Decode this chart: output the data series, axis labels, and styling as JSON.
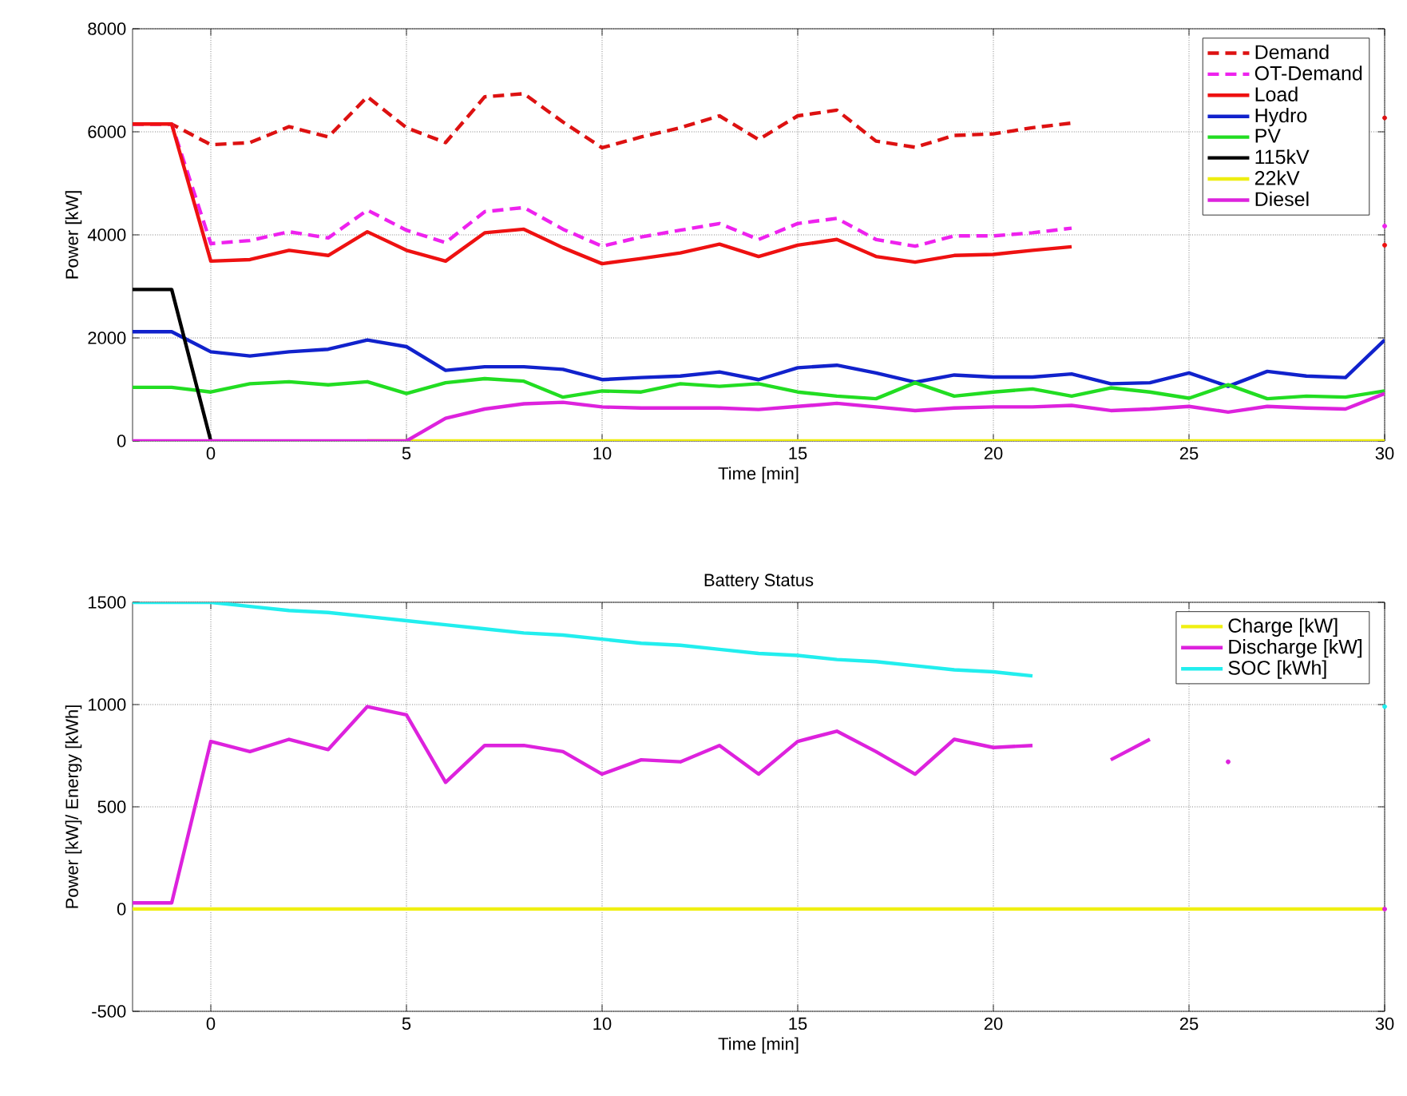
{
  "chart_data": [
    {
      "type": "line",
      "xlabel": "Time [min]",
      "ylabel": "Power [kW]",
      "xlim": [
        -2,
        30
      ],
      "ylim": [
        0,
        8000
      ],
      "xticks": [
        0,
        5,
        10,
        15,
        20,
        25,
        30
      ],
      "yticks": [
        0,
        2000,
        4000,
        6000,
        8000
      ],
      "grid": true,
      "legend": "top right",
      "x": [
        -2,
        -1,
        0,
        1,
        2,
        3,
        4,
        5,
        6,
        7,
        8,
        9,
        10,
        11,
        12,
        13,
        14,
        15,
        16,
        17,
        18,
        19,
        20,
        21,
        22,
        23,
        24,
        25,
        26,
        27,
        28,
        29,
        30
      ],
      "series": [
        {
          "name": "Demand",
          "color": "#dd1111",
          "line_style": "dashed",
          "values": [
            6150,
            6150,
            5750,
            5790,
            6100,
            5900,
            6680,
            6080,
            5790,
            6680,
            6740,
            6190,
            5690,
            5900,
            6080,
            6310,
            5850,
            6310,
            6420,
            5820,
            5700,
            5930,
            5960,
            6080,
            6170,
            null,
            null,
            null,
            null,
            null,
            null,
            null,
            6270
          ]
        },
        {
          "name": "OT-Demand",
          "color": "#ee22ee",
          "line_style": "dashed",
          "values": [
            6150,
            6150,
            3830,
            3890,
            4060,
            3940,
            4480,
            4090,
            3850,
            4450,
            4530,
            4110,
            3780,
            3960,
            4090,
            4220,
            3910,
            4220,
            4320,
            3910,
            3780,
            3980,
            3980,
            4040,
            4130,
            null,
            null,
            null,
            null,
            null,
            null,
            null,
            4170
          ]
        },
        {
          "name": "Load",
          "color": "#ee1111",
          "line_style": "solid",
          "values": [
            6150,
            6150,
            3490,
            3520,
            3700,
            3600,
            4060,
            3700,
            3490,
            4040,
            4110,
            3750,
            3440,
            3540,
            3650,
            3820,
            3580,
            3800,
            3910,
            3580,
            3470,
            3600,
            3620,
            3700,
            3770,
            null,
            null,
            null,
            null,
            null,
            null,
            null,
            3800
          ]
        },
        {
          "name": "Hydro",
          "color": "#1122cc",
          "line_style": "solid",
          "values": [
            2120,
            2120,
            1730,
            1650,
            1730,
            1780,
            1960,
            1830,
            1370,
            1440,
            1440,
            1390,
            1190,
            1230,
            1260,
            1340,
            1190,
            1420,
            1470,
            1320,
            1140,
            1280,
            1240,
            1240,
            1300,
            1110,
            1130,
            1320,
            1060,
            1350,
            1260,
            1230,
            1960
          ]
        },
        {
          "name": "PV",
          "color": "#22dd22",
          "line_style": "solid",
          "values": [
            1040,
            1040,
            950,
            1110,
            1150,
            1090,
            1150,
            920,
            1130,
            1210,
            1160,
            850,
            970,
            950,
            1110,
            1060,
            1110,
            950,
            870,
            820,
            1130,
            870,
            950,
            1010,
            870,
            1030,
            950,
            830,
            1090,
            820,
            870,
            850,
            970
          ]
        },
        {
          "name": "115kV",
          "color": "#000000",
          "line_style": "solid",
          "values": [
            2940,
            2940,
            0,
            null,
            null,
            null,
            null,
            null,
            null,
            null,
            null,
            null,
            null,
            null,
            null,
            null,
            null,
            null,
            null,
            null,
            null,
            null,
            null,
            null,
            null,
            null,
            null,
            null,
            null,
            null,
            null,
            null,
            null
          ]
        },
        {
          "name": "22kV",
          "color": "#eeee11",
          "line_style": "solid",
          "values": [
            null,
            null,
            null,
            null,
            null,
            null,
            0,
            0,
            0,
            0,
            0,
            0,
            0,
            0,
            0,
            0,
            0,
            0,
            0,
            0,
            0,
            0,
            0,
            0,
            0,
            0,
            0,
            0,
            0,
            0,
            0,
            0,
            0
          ]
        },
        {
          "name": "Diesel",
          "color": "#dd22dd",
          "line_style": "solid",
          "values": [
            0,
            0,
            0,
            0,
            0,
            0,
            0,
            0,
            440,
            620,
            720,
            750,
            660,
            640,
            640,
            640,
            610,
            670,
            730,
            660,
            590,
            640,
            660,
            660,
            690,
            590,
            620,
            670,
            560,
            670,
            640,
            620,
            920
          ]
        }
      ]
    },
    {
      "type": "line",
      "title": "Battery Status",
      "xlabel": "Time [min]",
      "ylabel": "Power [kW]/ Energy [kWh]",
      "xlim": [
        -2,
        30
      ],
      "ylim": [
        -500,
        1500
      ],
      "xticks": [
        0,
        5,
        10,
        15,
        20,
        25,
        30
      ],
      "yticks": [
        -500,
        0,
        500,
        1000,
        1500
      ],
      "grid": true,
      "legend": "top right",
      "x": [
        -2,
        -1,
        0,
        1,
        2,
        3,
        4,
        5,
        6,
        7,
        8,
        9,
        10,
        11,
        12,
        13,
        14,
        15,
        16,
        17,
        18,
        19,
        20,
        21,
        22,
        23,
        24,
        25,
        26,
        27,
        28,
        29,
        30
      ],
      "series": [
        {
          "name": "Charge [kW]",
          "color": "#f0f011",
          "line_style": "solid",
          "values": [
            0,
            0,
            0,
            0,
            0,
            0,
            0,
            0,
            0,
            0,
            0,
            0,
            0,
            0,
            0,
            0,
            0,
            0,
            0,
            0,
            0,
            0,
            0,
            0,
            0,
            0,
            0,
            0,
            0,
            0,
            0,
            0,
            0
          ]
        },
        {
          "name": "Discharge [kW]",
          "color": "#dd22dd",
          "line_style": "solid",
          "values": [
            30,
            30,
            820,
            770,
            830,
            780,
            990,
            950,
            620,
            800,
            800,
            770,
            660,
            730,
            720,
            800,
            660,
            820,
            870,
            770,
            660,
            830,
            790,
            800,
            null,
            730,
            830,
            null,
            720,
            null,
            null,
            null,
            0
          ]
        },
        {
          "name": "SOC [kWh]",
          "color": "#22eeee",
          "line_style": "solid",
          "values": [
            1500,
            1500,
            1500,
            1480,
            1460,
            1450,
            1430,
            1410,
            1390,
            1370,
            1350,
            1340,
            1320,
            1300,
            1290,
            1270,
            1250,
            1240,
            1220,
            1210,
            1190,
            1170,
            1160,
            1140,
            null,
            null,
            null,
            null,
            null,
            null,
            null,
            null,
            990
          ]
        }
      ]
    }
  ]
}
